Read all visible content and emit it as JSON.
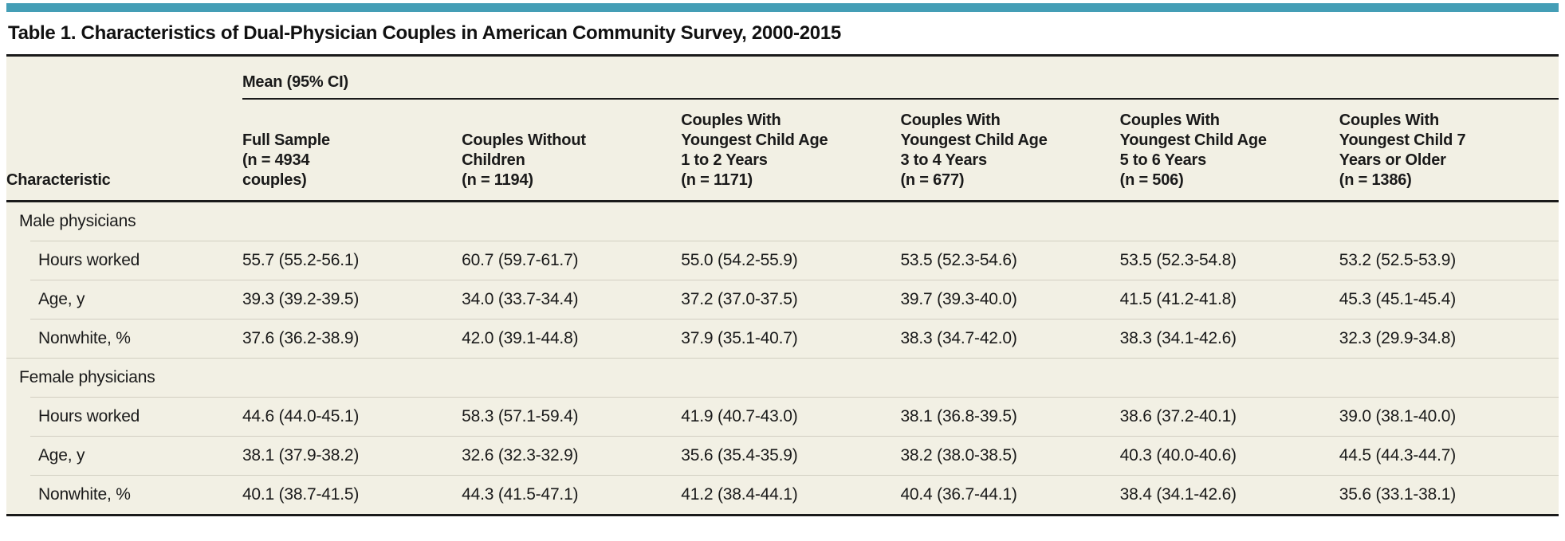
{
  "accent_color": "#449eb6",
  "title": "Table 1. Characteristics of Dual-Physician Couples in American Community Survey, 2000-2015",
  "table": {
    "span_header": "Mean (95% CI)",
    "row_header": "Characteristic",
    "columns": [
      "Full Sample\n(n = 4934\ncouples)",
      "Couples Without\nChildren\n(n = 1194)",
      "Couples With\nYoungest Child Age\n1 to 2 Years\n(n = 1171)",
      "Couples With\nYoungest Child Age\n3 to 4 Years\n(n = 677)",
      "Couples With\nYoungest Child Age\n5 to 6 Years\n(n = 506)",
      "Couples With\nYoungest Child 7\nYears or Older\n(n = 1386)"
    ],
    "sections": [
      {
        "label": "Male physicians",
        "rows": [
          {
            "label": "Hours worked",
            "values": [
              "55.7 (55.2-56.1)",
              "60.7 (59.7-61.7)",
              "55.0 (54.2-55.9)",
              "53.5 (52.3-54.6)",
              "53.5 (52.3-54.8)",
              "53.2 (52.5-53.9)"
            ]
          },
          {
            "label": "Age, y",
            "values": [
              "39.3 (39.2-39.5)",
              "34.0 (33.7-34.4)",
              "37.2 (37.0-37.5)",
              "39.7 (39.3-40.0)",
              "41.5 (41.2-41.8)",
              "45.3 (45.1-45.4)"
            ]
          },
          {
            "label": "Nonwhite, %",
            "values": [
              "37.6 (36.2-38.9)",
              "42.0 (39.1-44.8)",
              "37.9 (35.1-40.7)",
              "38.3 (34.7-42.0)",
              "38.3 (34.1-42.6)",
              "32.3 (29.9-34.8)"
            ]
          }
        ]
      },
      {
        "label": "Female physicians",
        "rows": [
          {
            "label": "Hours worked",
            "values": [
              "44.6 (44.0-45.1)",
              "58.3 (57.1-59.4)",
              "41.9 (40.7-43.0)",
              "38.1 (36.8-39.5)",
              "38.6 (37.2-40.1)",
              "39.0 (38.1-40.0)"
            ]
          },
          {
            "label": "Age, y",
            "values": [
              "38.1 (37.9-38.2)",
              "32.6 (32.3-32.9)",
              "35.6 (35.4-35.9)",
              "38.2 (38.0-38.5)",
              "40.3 (40.0-40.6)",
              "44.5 (44.3-44.7)"
            ]
          },
          {
            "label": "Nonwhite, %",
            "values": [
              "40.1 (38.7-41.5)",
              "44.3 (41.5-47.1)",
              "41.2 (38.4-44.1)",
              "40.4 (36.7-44.1)",
              "38.4 (34.1-42.6)",
              "35.6 (33.1-38.1)"
            ]
          }
        ]
      }
    ]
  }
}
